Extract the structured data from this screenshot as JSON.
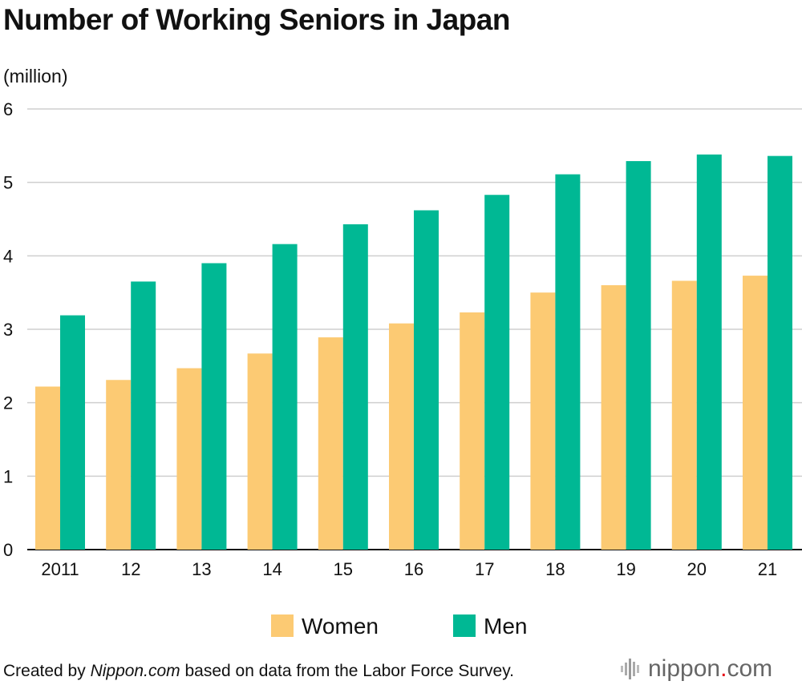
{
  "chart_data": {
    "type": "bar",
    "title": "Number of Working Seniors in Japan",
    "unit_label": "(million)",
    "categories": [
      "2011",
      "12",
      "13",
      "14",
      "15",
      "16",
      "17",
      "18",
      "19",
      "20",
      "21"
    ],
    "series": [
      {
        "name": "Women",
        "color": "#fcca73",
        "values": [
          2.22,
          2.31,
          2.47,
          2.67,
          2.89,
          3.08,
          3.23,
          3.5,
          3.6,
          3.66,
          3.73
        ]
      },
      {
        "name": "Men",
        "color": "#00b894",
        "values": [
          3.19,
          3.65,
          3.9,
          4.16,
          4.43,
          4.62,
          4.83,
          5.11,
          5.29,
          5.38,
          5.36
        ]
      }
    ],
    "y_ticks": [
      "0",
      "1",
      "2",
      "3",
      "4",
      "5",
      "6"
    ],
    "ylim": [
      0,
      6
    ],
    "grid": true,
    "legend_position": "bottom-center"
  },
  "footer": {
    "prefix": "Created by ",
    "site": "Nippon.com",
    "suffix": " based on data from the Labor Force Survey."
  },
  "logo": {
    "text_a": "nippon",
    "dot": ".",
    "text_b": "com"
  }
}
